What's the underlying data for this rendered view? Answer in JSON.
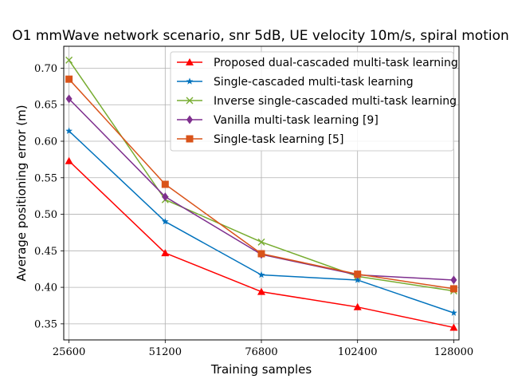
{
  "chart_data": {
    "type": "line",
    "title": "O1 mmWave network scenario, snr 5dB, UE velocity 10m/s, spiral motion",
    "xlabel": "Training samples",
    "ylabel": "Average positioning error (m)",
    "x": [
      25600,
      51200,
      76800,
      102400,
      128000
    ],
    "x_tick_labels": [
      "25600",
      "51200",
      "76800",
      "102400",
      "128000"
    ],
    "y_ticks": [
      0.35,
      0.4,
      0.45,
      0.5,
      0.55,
      0.6,
      0.65,
      0.7
    ],
    "y_tick_labels": [
      "0.35",
      "0.40",
      "0.45",
      "0.50",
      "0.55",
      "0.60",
      "0.65",
      "0.70"
    ],
    "xlim": [
      24200,
      129400
    ],
    "ylim": [
      0.328,
      0.73
    ],
    "grid": true,
    "legend_position": "top-right",
    "series": [
      {
        "name": "Proposed dual-cascaded multi-task learning",
        "color": "#ff0000",
        "marker": "triangle",
        "values": [
          0.573,
          0.447,
          0.394,
          0.373,
          0.345
        ]
      },
      {
        "name": "Single-cascaded multi-task learning",
        "color": "#0072bd",
        "marker": "star",
        "values": [
          0.614,
          0.49,
          0.417,
          0.41,
          0.365
        ]
      },
      {
        "name": "Inverse single-cascaded multi-task learning",
        "color": "#77ac30",
        "marker": "x",
        "values": [
          0.711,
          0.52,
          0.462,
          0.415,
          0.395
        ]
      },
      {
        "name": "Vanilla multi-task learning [9]",
        "color": "#7e2f8e",
        "marker": "diamond",
        "values": [
          0.658,
          0.524,
          0.445,
          0.417,
          0.41
        ]
      },
      {
        "name": "Single-task learning [5]",
        "color": "#d95319",
        "marker": "square",
        "values": [
          0.685,
          0.541,
          0.446,
          0.418,
          0.398
        ]
      }
    ]
  }
}
